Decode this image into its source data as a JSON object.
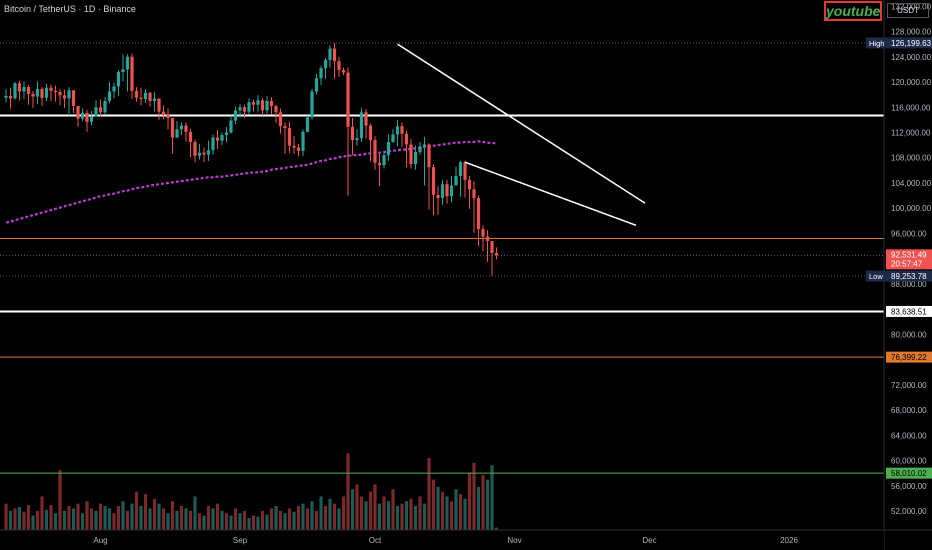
{
  "header": {
    "symbol_title": "Bitcoin / TetherUS · 1D · Binance",
    "brand_label": "youtube",
    "unit_button": "USDT"
  },
  "colors": {
    "up": "#26a69a",
    "down": "#ef5350",
    "up_volume": "#1d5c56",
    "down_volume": "#7a2a2b",
    "ma": "#b33fc4",
    "trendline": "#ffffff",
    "orange_level": "#e0782f",
    "green_level": "#4caf50"
  },
  "chart_data": {
    "type": "candlestick",
    "x_tick_labels": [
      "Aug",
      "Sep",
      "Oct",
      "Nov",
      "Dec",
      "2026"
    ],
    "y_tick_labels": [
      "132,000.00",
      "128,000.00",
      "124,000.00",
      "120,000.00",
      "116,000.00",
      "112,000.00",
      "108,000.00",
      "104,000.00",
      "100,000.00",
      "96,000.00",
      "88,000.00",
      "80,000.00",
      "72,000.00",
      "68,000.00",
      "64,000.00",
      "60,000.00",
      "56,000.00",
      "52,000.00"
    ],
    "y_ticks": [
      132000,
      128000,
      124000,
      120000,
      116000,
      112000,
      108000,
      104000,
      100000,
      96000,
      88000,
      80000,
      72000,
      68000,
      64000,
      60000,
      56000,
      52000
    ],
    "y_range": [
      49000,
      133000
    ],
    "x_ticks": [
      {
        "label": "Aug",
        "date": "2025-08-01"
      },
      {
        "label": "Sep",
        "date": "2025-09-01"
      },
      {
        "label": "Oct",
        "date": "2025-10-01"
      },
      {
        "label": "Nov",
        "date": "2025-11-01"
      },
      {
        "label": "Dec",
        "date": "2025-12-01"
      },
      {
        "label": "2026",
        "date": "2026-01-01"
      }
    ],
    "start_date": "2025-07-11",
    "end_date": "2025-11-21",
    "closes": [
      117800,
      117400,
      119800,
      118500,
      119200,
      118100,
      117700,
      118900,
      117500,
      119100,
      118600,
      118400,
      117900,
      117400,
      118700,
      116200,
      114200,
      115100,
      113700,
      114500,
      116000,
      115200,
      117000,
      118500,
      119300,
      121600,
      122000,
      124000,
      118600,
      117500,
      117300,
      118300,
      117000,
      117400,
      115300,
      114800,
      114300,
      111200,
      112500,
      113100,
      112100,
      110500,
      108300,
      108800,
      108500,
      109200,
      111200,
      110700,
      111600,
      112000,
      113900,
      115500,
      116000,
      115300,
      116800,
      116400,
      117100,
      115500,
      117000,
      116200,
      115200,
      113000,
      112700,
      109900,
      109600,
      109100,
      112100,
      114400,
      118500,
      120600,
      122200,
      123500,
      125300,
      123300,
      121900,
      121500,
      112900,
      110800,
      111100,
      115200,
      113100,
      110800,
      107200,
      106800,
      108400,
      110500,
      111700,
      113000,
      111800,
      110100,
      107000,
      108900,
      109800,
      110100,
      106500,
      102100,
      101600,
      103800,
      101900,
      103600,
      105100,
      107300,
      104500,
      103000,
      101600,
      96700,
      95500,
      94800,
      92900,
      92531
    ],
    "lows": [
      116800,
      115800,
      117200,
      117100,
      117300,
      116400,
      115900,
      116500,
      116200,
      117000,
      117000,
      116900,
      116300,
      115900,
      114700,
      115100,
      112900,
      113800,
      112100,
      113100,
      114500,
      114500,
      114800,
      116600,
      117400,
      117800,
      120100,
      118500,
      117300,
      116900,
      116300,
      116700,
      116100,
      115300,
      114000,
      114100,
      112500,
      108700,
      111100,
      111600,
      110600,
      108100,
      107300,
      107700,
      107300,
      107500,
      108500,
      109400,
      110000,
      110500,
      111800,
      113300,
      114400,
      114300,
      114900,
      115300,
      115300,
      114700,
      115000,
      114900,
      113500,
      111800,
      108600,
      108700,
      108600,
      108200,
      108300,
      112000,
      114000,
      118000,
      119500,
      120500,
      122300,
      120500,
      120800,
      121100,
      102000,
      108400,
      109900,
      110500,
      111000,
      107400,
      106100,
      103500,
      106300,
      107500,
      110400,
      109800,
      109700,
      106500,
      106300,
      106100,
      108500,
      103600,
      99800,
      98900,
      98900,
      100500,
      100700,
      100900,
      104500,
      101800,
      101700,
      99900,
      96100,
      94000,
      93200,
      91500,
      89254,
      91900
    ],
    "highs": [
      118900,
      119100,
      120000,
      120200,
      120100,
      119500,
      118600,
      120100,
      119200,
      119700,
      119600,
      119400,
      118900,
      118800,
      119200,
      118600,
      115900,
      115800,
      115600,
      115400,
      117100,
      117200,
      117600,
      120000,
      119900,
      121900,
      124400,
      124400,
      124500,
      119200,
      119100,
      118900,
      118400,
      118400,
      117400,
      116300,
      115800,
      114300,
      113800,
      113600,
      113600,
      112600,
      110900,
      110200,
      109600,
      110700,
      111700,
      112400,
      112000,
      112900,
      114700,
      116100,
      116500,
      116400,
      117400,
      117200,
      117900,
      117400,
      117800,
      117600,
      116400,
      115800,
      113600,
      113700,
      111400,
      110200,
      112500,
      114700,
      118900,
      121300,
      122600,
      123800,
      125800,
      126200,
      124000,
      122300,
      122300,
      114300,
      112500,
      115900,
      115700,
      113400,
      111400,
      108700,
      108800,
      111700,
      112600,
      114000,
      113600,
      112300,
      111000,
      109900,
      110500,
      111300,
      110300,
      107000,
      103500,
      104500,
      104500,
      105100,
      106600,
      107500,
      107500,
      105100,
      104300,
      102000,
      97300,
      96500,
      94600,
      93800
    ],
    "moving_average": {
      "start_date": "2025-07-11",
      "values": [
        97700,
        97900,
        98100,
        98300,
        98500,
        98700,
        98900,
        99100,
        99300,
        99500,
        99700,
        99900,
        100100,
        100300,
        100500,
        100700,
        100900,
        101100,
        101300,
        101500,
        101700,
        101900,
        102000,
        102200,
        102300,
        102500,
        102700,
        102800,
        103000,
        103200,
        103300,
        103400,
        103600,
        103700,
        103800,
        103900,
        104000,
        104100,
        104200,
        104300,
        104400,
        104500,
        104600,
        104700,
        104800,
        104900,
        104900,
        105000,
        105000,
        105100,
        105200,
        105300,
        105400,
        105500,
        105600,
        105700,
        105700,
        105800,
        105900,
        106100,
        106200,
        106300,
        106400,
        106500,
        106600,
        106700,
        106800,
        106900,
        107100,
        107300,
        107500,
        107600,
        107800,
        107900,
        108100,
        108200,
        108300,
        108400,
        108400,
        108500,
        108600,
        108700,
        108800,
        108800,
        108900,
        109000,
        109100,
        109200,
        109300,
        109300,
        109400,
        109500,
        109600,
        109700,
        109800,
        109900,
        110000,
        110100,
        110200,
        110300,
        110400,
        110400,
        110500,
        110500,
        110500,
        110600,
        110500,
        110400,
        110300,
        110300
      ]
    },
    "volumes": [
      {
        "color": "down",
        "frac": 0.55
      },
      {
        "color": "up",
        "frac": 0.4
      },
      {
        "color": "down",
        "frac": 0.45
      },
      {
        "color": "up",
        "frac": 0.48
      },
      {
        "color": "down",
        "frac": 0.38
      },
      {
        "color": "down",
        "frac": 0.52
      },
      {
        "color": "up",
        "frac": 0.3
      },
      {
        "color": "down",
        "frac": 0.4
      },
      {
        "color": "down",
        "frac": 0.7
      },
      {
        "color": "up",
        "frac": 0.42
      },
      {
        "color": "down",
        "frac": 0.52
      },
      {
        "color": "up",
        "frac": 0.35
      },
      {
        "color": "down",
        "frac": 1.25
      },
      {
        "color": "up",
        "frac": 0.4
      },
      {
        "color": "down",
        "frac": 0.5
      },
      {
        "color": "up",
        "frac": 0.45
      },
      {
        "color": "down",
        "frac": 0.55
      },
      {
        "color": "up",
        "frac": 0.35
      },
      {
        "color": "down",
        "frac": 0.6
      },
      {
        "color": "down",
        "frac": 0.45
      },
      {
        "color": "up",
        "frac": 0.4
      },
      {
        "color": "down",
        "frac": 0.55
      },
      {
        "color": "up",
        "frac": 0.5
      },
      {
        "color": "up",
        "frac": 0.45
      },
      {
        "color": "down",
        "frac": 0.35
      },
      {
        "color": "down",
        "frac": 0.5
      },
      {
        "color": "up",
        "frac": 0.6
      },
      {
        "color": "down",
        "frac": 0.4
      },
      {
        "color": "up",
        "frac": 0.55
      },
      {
        "color": "down",
        "frac": 0.8
      },
      {
        "color": "up",
        "frac": 0.5
      },
      {
        "color": "down",
        "frac": 0.75
      },
      {
        "color": "up",
        "frac": 0.45
      },
      {
        "color": "down",
        "frac": 0.65
      },
      {
        "color": "up",
        "frac": 0.55
      },
      {
        "color": "down",
        "frac": 0.45
      },
      {
        "color": "up",
        "frac": 0.35
      },
      {
        "color": "down",
        "frac": 0.6
      },
      {
        "color": "up",
        "frac": 0.4
      },
      {
        "color": "down",
        "frac": 0.5
      },
      {
        "color": "up",
        "frac": 0.45
      },
      {
        "color": "down",
        "frac": 0.4
      },
      {
        "color": "up",
        "frac": 0.7
      },
      {
        "color": "down",
        "frac": 0.35
      },
      {
        "color": "up",
        "frac": 0.3
      },
      {
        "color": "down",
        "frac": 0.5
      },
      {
        "color": "up",
        "frac": 0.45
      },
      {
        "color": "down",
        "frac": 0.55
      },
      {
        "color": "up",
        "frac": 0.4
      },
      {
        "color": "down",
        "frac": 0.35
      },
      {
        "color": "up",
        "frac": 0.3
      },
      {
        "color": "down",
        "frac": 0.45
      },
      {
        "color": "up",
        "frac": 0.35
      },
      {
        "color": "down",
        "frac": 0.4
      },
      {
        "color": "up",
        "frac": 0.25
      },
      {
        "color": "down",
        "frac": 0.3
      },
      {
        "color": "up",
        "frac": 0.28
      },
      {
        "color": "down",
        "frac": 0.4
      },
      {
        "color": "up",
        "frac": 0.32
      },
      {
        "color": "down",
        "frac": 0.45
      },
      {
        "color": "up",
        "frac": 0.5
      },
      {
        "color": "down",
        "frac": 0.4
      },
      {
        "color": "up",
        "frac": 0.35
      },
      {
        "color": "down",
        "frac": 0.45
      },
      {
        "color": "up",
        "frac": 0.38
      },
      {
        "color": "down",
        "frac": 0.5
      },
      {
        "color": "up",
        "frac": 0.55
      },
      {
        "color": "down",
        "frac": 0.45
      },
      {
        "color": "up",
        "frac": 0.6
      },
      {
        "color": "down",
        "frac": 0.4
      },
      {
        "color": "up",
        "frac": 0.7
      },
      {
        "color": "down",
        "frac": 0.5
      },
      {
        "color": "up",
        "frac": 0.65
      },
      {
        "color": "down",
        "frac": 0.55
      },
      {
        "color": "up",
        "frac": 0.45
      },
      {
        "color": "down",
        "frac": 0.7
      },
      {
        "color": "down",
        "frac": 1.6
      },
      {
        "color": "up",
        "frac": 0.85
      },
      {
        "color": "down",
        "frac": 0.95
      },
      {
        "color": "down",
        "frac": 0.7
      },
      {
        "color": "up",
        "frac": 0.6
      },
      {
        "color": "down",
        "frac": 0.8
      },
      {
        "color": "down",
        "frac": 0.95
      },
      {
        "color": "up",
        "frac": 0.55
      },
      {
        "color": "down",
        "frac": 0.7
      },
      {
        "color": "up",
        "frac": 0.6
      },
      {
        "color": "down",
        "frac": 0.85
      },
      {
        "color": "up",
        "frac": 0.5
      },
      {
        "color": "down",
        "frac": 0.55
      },
      {
        "color": "up",
        "frac": 0.6
      },
      {
        "color": "down",
        "frac": 0.65
      },
      {
        "color": "up",
        "frac": 0.5
      },
      {
        "color": "down",
        "frac": 0.7
      },
      {
        "color": "up",
        "frac": 0.55
      },
      {
        "color": "down",
        "frac": 1.5
      },
      {
        "color": "down",
        "frac": 1.05
      },
      {
        "color": "up",
        "frac": 0.9
      },
      {
        "color": "down",
        "frac": 0.8
      },
      {
        "color": "up",
        "frac": 0.7
      },
      {
        "color": "down",
        "frac": 0.6
      },
      {
        "color": "up",
        "frac": 0.85
      },
      {
        "color": "down",
        "frac": 0.75
      },
      {
        "color": "up",
        "frac": 0.65
      },
      {
        "color": "down",
        "frac": 1.2
      },
      {
        "color": "down",
        "frac": 1.4
      },
      {
        "color": "up",
        "frac": 0.9
      },
      {
        "color": "down",
        "frac": 1.15
      },
      {
        "color": "up",
        "frac": 1.05
      },
      {
        "color": "up",
        "frac": 1.35
      },
      {
        "color": "down",
        "frac": 0.05
      }
    ],
    "volume_base_price": 49000,
    "volume_unit_price": 7600,
    "horizontal_levels": [
      {
        "price": 114700,
        "color": "#ffffff",
        "width": 2
      },
      {
        "price": 95200,
        "color": "#e0782f",
        "width": 1
      },
      {
        "price": 83638.51,
        "color": "#ffffff",
        "width": 2
      },
      {
        "price": 76399.22,
        "color": "#e0782f",
        "width": 1
      },
      {
        "price": 58010.02,
        "color": "#4caf50",
        "width": 1
      }
    ],
    "dotted_levels": [
      {
        "price": 126199.63
      },
      {
        "price": 92531.49
      },
      {
        "price": 89253.78
      }
    ],
    "trendlines": [
      {
        "from": {
          "date": "2025-10-06",
          "price": 126000
        },
        "to": {
          "date": "2025-11-30",
          "price": 100800
        }
      },
      {
        "from": {
          "date": "2025-10-21",
          "price": 107300
        },
        "to": {
          "date": "2025-11-28",
          "price": 97300
        }
      }
    ],
    "price_labels": [
      {
        "kind": "tag",
        "tag": "High",
        "value": "126,199.63",
        "price": 126199.63,
        "bg": "#1e2a4a",
        "fg": "#ffffff"
      },
      {
        "kind": "current",
        "value": "92,531.49",
        "sub": "20:57:47",
        "price": 92531.49,
        "bg": "#ef5350",
        "fg": "#ffffff"
      },
      {
        "kind": "tag",
        "tag": "Low",
        "value": "89,253.78",
        "price": 89253.78,
        "bg": "#1e2a4a",
        "fg": "#ffffff"
      },
      {
        "kind": "plain",
        "value": "83,638.51",
        "price": 83638.51,
        "bg": "#ffffff",
        "fg": "#000000"
      },
      {
        "kind": "plain",
        "value": "76,399.22",
        "price": 76399.22,
        "bg": "#e0782f",
        "fg": "#000000"
      },
      {
        "kind": "plain",
        "value": "58,010.02",
        "price": 58010.02,
        "bg": "#4caf50",
        "fg": "#000000"
      }
    ]
  }
}
